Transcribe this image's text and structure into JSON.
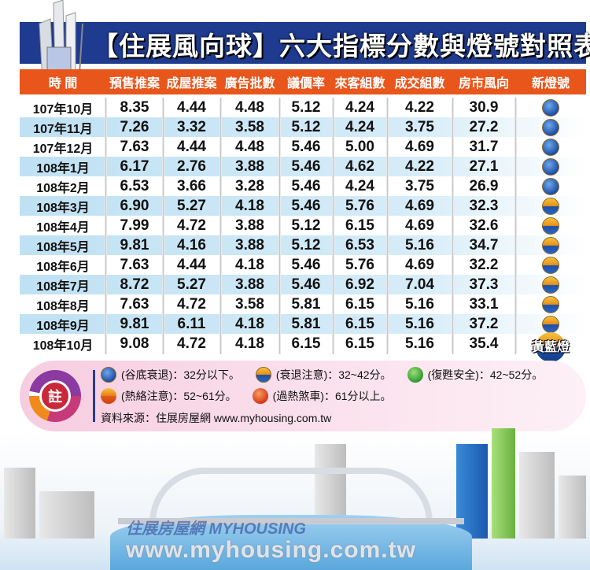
{
  "title": "【住展風向球】六大指標分數與燈號對照表",
  "headers": [
    "時 間",
    "預售推案",
    "成屋推案",
    "廣告批數",
    "議價率",
    "來客組數",
    "成交組數",
    "房市風向",
    "新燈號"
  ],
  "rows": [
    {
      "time": "107年10月",
      "v": [
        "8.35",
        "4.44",
        "4.48",
        "5.12",
        "4.24",
        "4.22",
        "30.9"
      ],
      "lamp": "blue"
    },
    {
      "time": "107年11月",
      "v": [
        "7.26",
        "3.32",
        "3.58",
        "5.12",
        "4.24",
        "3.75",
        "27.2"
      ],
      "lamp": "blue"
    },
    {
      "time": "107年12月",
      "v": [
        "7.63",
        "4.44",
        "4.48",
        "5.46",
        "5.00",
        "4.69",
        "31.7"
      ],
      "lamp": "blue"
    },
    {
      "time": "108年1月",
      "v": [
        "6.17",
        "2.76",
        "3.88",
        "5.46",
        "4.62",
        "4.22",
        "27.1"
      ],
      "lamp": "blue"
    },
    {
      "time": "108年2月",
      "v": [
        "6.53",
        "3.66",
        "3.28",
        "5.46",
        "4.24",
        "3.75",
        "26.9"
      ],
      "lamp": "blue"
    },
    {
      "time": "108年3月",
      "v": [
        "6.90",
        "5.27",
        "4.18",
        "5.46",
        "5.76",
        "4.69",
        "32.3"
      ],
      "lamp": "yellow-blue"
    },
    {
      "time": "108年4月",
      "v": [
        "7.99",
        "4.72",
        "3.88",
        "5.12",
        "6.15",
        "4.69",
        "32.6"
      ],
      "lamp": "yellow-blue"
    },
    {
      "time": "108年5月",
      "v": [
        "9.81",
        "4.16",
        "3.88",
        "5.12",
        "6.53",
        "5.16",
        "34.7"
      ],
      "lamp": "yellow-blue"
    },
    {
      "time": "108年6月",
      "v": [
        "7.63",
        "4.44",
        "4.18",
        "5.46",
        "5.76",
        "4.69",
        "32.2"
      ],
      "lamp": "yellow-blue"
    },
    {
      "time": "108年7月",
      "v": [
        "8.72",
        "5.27",
        "3.88",
        "5.46",
        "6.92",
        "7.04",
        "37.3"
      ],
      "lamp": "yellow-blue"
    },
    {
      "time": "108年8月",
      "v": [
        "7.63",
        "4.72",
        "3.58",
        "5.81",
        "6.15",
        "5.16",
        "33.1"
      ],
      "lamp": "yellow-blue"
    },
    {
      "time": "108年9月",
      "v": [
        "9.81",
        "6.11",
        "4.18",
        "5.81",
        "6.15",
        "5.16",
        "37.2"
      ],
      "lamp": "yellow-blue"
    },
    {
      "time": "108年10月",
      "v": [
        "9.08",
        "4.72",
        "4.18",
        "6.15",
        "6.15",
        "5.16",
        "35.4"
      ],
      "lamp": "yellow-blue",
      "lamp_label": "黃藍燈"
    }
  ],
  "note": {
    "icon_label": "註",
    "legend": [
      {
        "lamp": "blue",
        "text": "(谷底衰退)：32分以下。"
      },
      {
        "lamp": "yellow-blue",
        "text": "(衰退注意)：32~42分。"
      },
      {
        "lamp": "green",
        "text": "(復甦安全)：42~52分。"
      },
      {
        "lamp": "yellow-red",
        "text": "(熱絡注意)：52~61分。"
      },
      {
        "lamp": "red",
        "text": "(過熱煞車)：61分以上。"
      }
    ],
    "source": "資料來源：住展房屋網 www.myhousing.com.tw"
  },
  "watermark": {
    "logo": "住展房屋網 MYHOUSING",
    "url": "www.myhousing.com.tw"
  },
  "colors": {
    "banner": "#1f3b8f",
    "header": "#e9561b",
    "row_alt": "#bfe1f3"
  }
}
